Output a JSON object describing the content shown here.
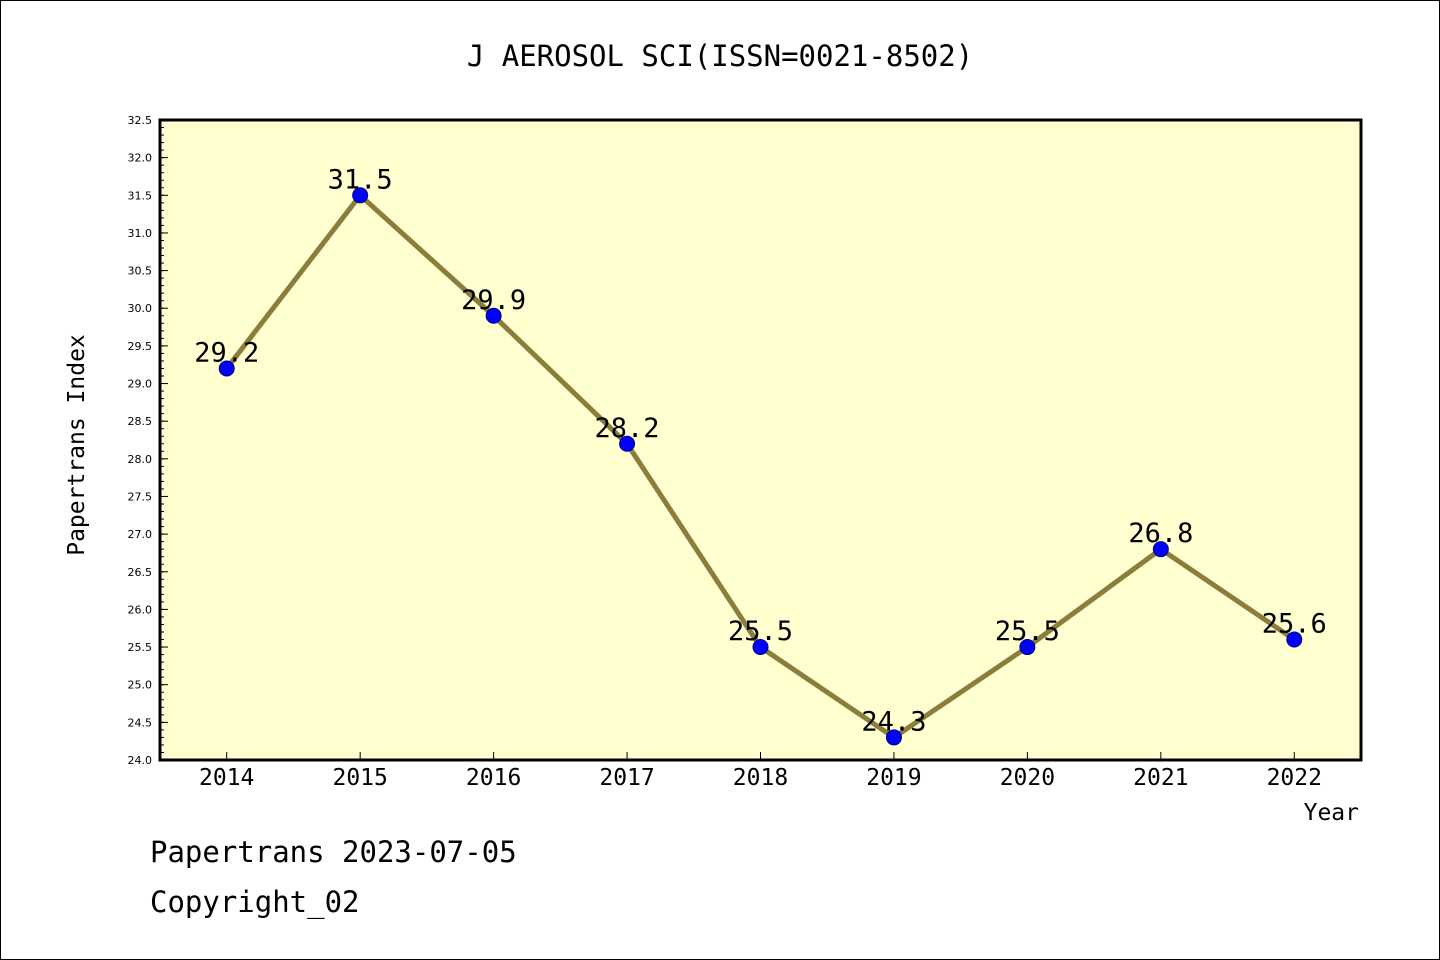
{
  "chart_data": {
    "type": "line",
    "title": "J AEROSOL SCI(ISSN=0021-8502)",
    "xlabel": "Year",
    "ylabel": "Papertrans Index",
    "categories": [
      "2014",
      "2015",
      "2016",
      "2017",
      "2018",
      "2019",
      "2020",
      "2021",
      "2022"
    ],
    "series": [
      {
        "values": [
          29.2,
          31.5,
          29.9,
          28.2,
          25.5,
          24.3,
          25.5,
          26.8,
          25.6
        ]
      }
    ],
    "data_labels": [
      "29.2",
      "31.5",
      "29.9",
      "28.2",
      "25.5",
      "24.3",
      "25.5",
      "26.8",
      "25.6"
    ],
    "ylim": [
      24.0,
      32.5
    ],
    "yticks": [
      "24.0",
      "24.5",
      "25.0",
      "25.5",
      "26.0",
      "26.5",
      "27.0",
      "27.5",
      "28.0",
      "28.5",
      "29.0",
      "29.5",
      "30.0",
      "30.5",
      "31.0",
      "31.5",
      "32.0",
      "32.5"
    ],
    "grid": false,
    "legend": "none",
    "colors": {
      "plot_background": "#ffffd0",
      "line": "#8b7d3a",
      "marker": "#0000ff",
      "marker_edge": "#000080"
    }
  },
  "footer": {
    "line1": "Papertrans 2023-07-05",
    "line2": "Copyright_02"
  }
}
